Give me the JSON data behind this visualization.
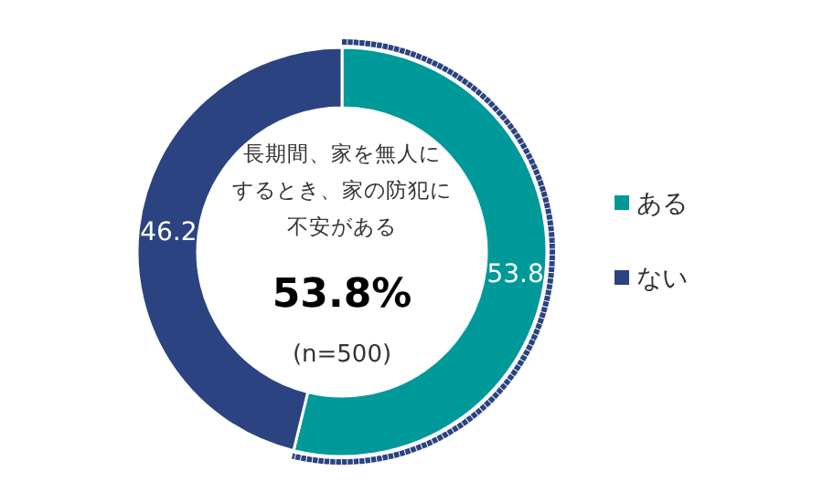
{
  "chart_data": {
    "type": "donut",
    "categories": [
      "ある",
      "ない"
    ],
    "values": [
      53.8,
      46.2
    ],
    "colors": [
      "#009999",
      "#2b4381"
    ],
    "data_labels": true,
    "legend": "right",
    "annotations": [
      "長期間、家を無人に",
      "するとき、家の防犯に",
      "不安がある",
      "53.8%",
      "(n=500)"
    ]
  }
}
